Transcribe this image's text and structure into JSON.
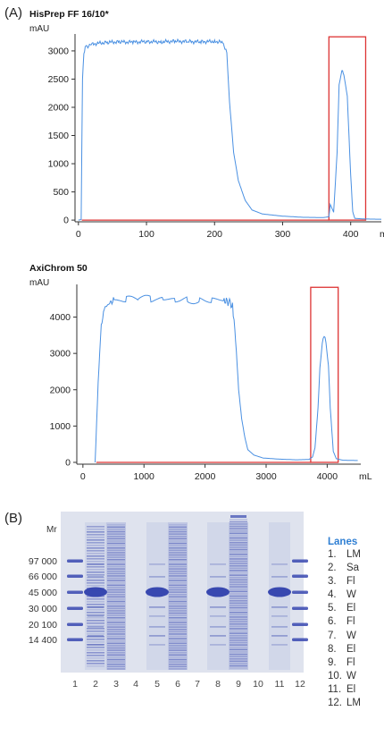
{
  "panel_labels": {
    "a": "(A)",
    "b": "(B)"
  },
  "chart_data": [
    {
      "type": "line",
      "title": "HisPrep FF 16/10*",
      "ylabel": "mAU",
      "xlabel": "mL",
      "xlim": [
        -5,
        445
      ],
      "ylim": [
        -30,
        3300
      ],
      "xticks": [
        0,
        100,
        200,
        300,
        400
      ],
      "yticks": [
        0,
        500,
        1000,
        1500,
        2000,
        2500,
        3000
      ],
      "series": [
        {
          "color": "#4a90e2",
          "x": [
            0,
            4,
            6,
            8,
            10,
            20,
            40,
            60,
            80,
            100,
            120,
            140,
            160,
            180,
            200,
            212,
            214,
            218,
            222,
            228,
            235,
            245,
            255,
            270,
            300,
            330,
            360,
            368,
            370,
            375,
            380,
            383,
            387,
            390,
            395,
            400,
            403,
            406,
            420,
            445
          ],
          "y": [
            0,
            10,
            2500,
            2950,
            3060,
            3120,
            3150,
            3160,
            3155,
            3165,
            3160,
            3170,
            3165,
            3160,
            3170,
            3150,
            3100,
            2950,
            2100,
            1200,
            700,
            350,
            180,
            110,
            70,
            50,
            45,
            60,
            280,
            140,
            1200,
            2400,
            2650,
            2580,
            2200,
            800,
            150,
            30,
            20,
            15
          ]
        }
      ],
      "fraction_box": {
        "color": "#d33",
        "x0": 368,
        "x1": 422,
        "y_top": 3250
      },
      "baseline": {
        "color": "#d33",
        "x0": 5,
        "x1": 368,
        "y": 0
      }
    },
    {
      "type": "line",
      "title": "AxiChrom 50",
      "ylabel": "mAU",
      "xlabel": "mL",
      "xlim": [
        -100,
        4550
      ],
      "ylim": [
        -50,
        4900
      ],
      "xticks": [
        0,
        1000,
        2000,
        3000,
        4000
      ],
      "yticks": [
        0,
        1000,
        2000,
        3000,
        4000
      ],
      "series": [
        {
          "color": "#4a90e2",
          "x": [
            200,
            250,
            300,
            350,
            400,
            500,
            700,
            900,
            1100,
            1300,
            1500,
            1700,
            1900,
            2100,
            2300,
            2400,
            2450,
            2500,
            2550,
            2600,
            2650,
            2700,
            2800,
            2950,
            3200,
            3500,
            3700,
            3760,
            3800,
            3850,
            3880,
            3920,
            3950,
            3980,
            4020,
            4050,
            4100,
            4150,
            4250,
            4500
          ],
          "y": [
            0,
            2200,
            3800,
            4200,
            4350,
            4450,
            4480,
            4500,
            4490,
            4500,
            4480,
            4490,
            4470,
            4480,
            4470,
            4400,
            4300,
            3400,
            2000,
            1200,
            700,
            350,
            200,
            120,
            90,
            70,
            80,
            150,
            400,
            1500,
            2600,
            3300,
            3450,
            3350,
            2700,
            1500,
            300,
            100,
            60,
            50
          ]
        }
      ],
      "fraction_box": {
        "color": "#d33",
        "x0": 3730,
        "x1": 4180,
        "y_top": 4820
      },
      "baseline": {
        "color": "#d33",
        "x0": 220,
        "x1": 3730,
        "y": 0
      }
    }
  ],
  "gel": {
    "mr_label": "Mr",
    "markers": [
      "97 000",
      "66 000",
      "45 000",
      "30 000",
      "20 100",
      "14 400"
    ],
    "lane_numbers": [
      "1",
      "2",
      "3",
      "4",
      "5",
      "6",
      "7",
      "8",
      "9",
      "10",
      "11",
      "12"
    ],
    "lane_types": [
      "marker",
      "main",
      "smear",
      "empty",
      "main",
      "smear",
      "empty",
      "main",
      "smear",
      "empty",
      "main",
      "marker"
    ],
    "background_color": "#dfe3ee",
    "band_color": "#3848b0"
  },
  "lanes": {
    "title": "Lanes",
    "items": [
      {
        "num": "1.",
        "text": "LM"
      },
      {
        "num": "2.",
        "text": "Sa"
      },
      {
        "num": "3.",
        "text": "Fl"
      },
      {
        "num": "4.",
        "text": "W"
      },
      {
        "num": "5.",
        "text": "El"
      },
      {
        "num": "6.",
        "text": "Fl"
      },
      {
        "num": "7.",
        "text": "W"
      },
      {
        "num": "8.",
        "text": "El"
      },
      {
        "num": "9.",
        "text": "Fl"
      },
      {
        "num": "10.",
        "text": "W"
      },
      {
        "num": "11.",
        "text": "El"
      },
      {
        "num": "12.",
        "text": "LM"
      }
    ]
  }
}
